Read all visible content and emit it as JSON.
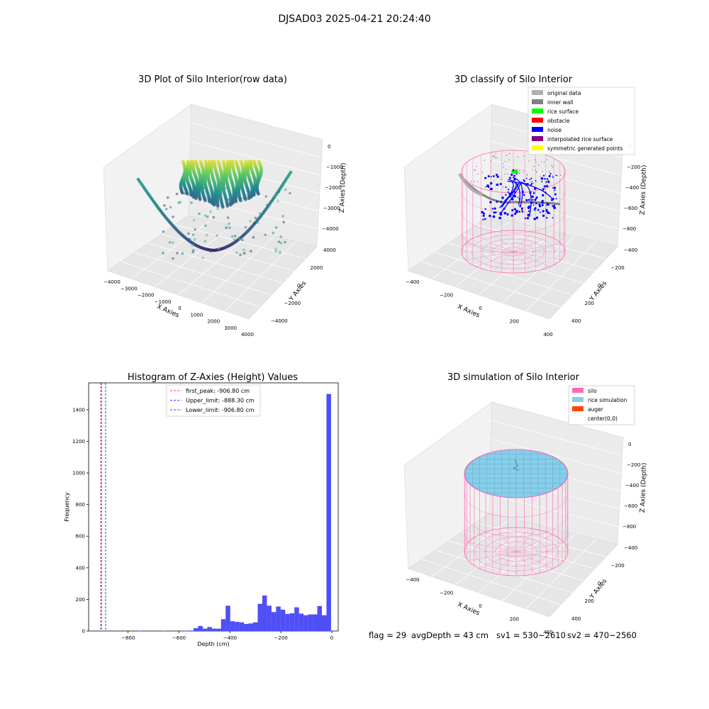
{
  "suptitle": "DJSAD03 2025-04-21 20:24:40",
  "colors": {
    "viridis": [
      "#440154",
      "#3b528b",
      "#21918c",
      "#5ec962",
      "#fde725"
    ],
    "inner_wall": "#808080",
    "original": "#b0b0b0",
    "rice_surface": "#00ff00",
    "obstacle": "#ff0000",
    "noise": "#0000ff",
    "interp": "#800080",
    "symmetric": "#ffff00",
    "silo": "#ff69b4",
    "rice_sim": "#87ceeb",
    "auger": "#ff4500",
    "hist_bar": "#4f4ff7",
    "first_peak_line": "#ff0000",
    "limit_line": "#0000ff"
  },
  "chart_data": [
    {
      "type": "scatter",
      "title": "3D Plot of Silo Interior(row data)",
      "projection": "3d",
      "xlabel": "X Axies",
      "ylabel": "Y Axies",
      "zlabel": "Z Axies (Depth)",
      "x_ticks": [
        "−4000",
        "−3000",
        "−2000",
        "−1000",
        "0",
        "1000",
        "2000",
        "3000",
        "4000"
      ],
      "y_ticks": [
        "−4000",
        "−2000",
        "0",
        "2000",
        "4000"
      ],
      "z_ticks": [
        "0",
        "−1000",
        "−2000",
        "−3000",
        "−4000"
      ],
      "xlim": [
        -4000,
        4000
      ],
      "ylim": [
        -4000,
        4000
      ],
      "zlim": [
        -4500,
        0
      ],
      "colormap": "viridis"
    },
    {
      "type": "scatter",
      "title": "3D classify of Silo Interior",
      "projection": "3d",
      "xlabel": "X Axies",
      "ylabel": "Y Axies",
      "zlabel": "Z Axies (Depth)",
      "x_ticks": [
        "−400",
        "−200",
        "0",
        "200",
        "400"
      ],
      "y_ticks": [
        "400",
        "200",
        "0",
        "−200",
        "−400"
      ],
      "z_ticks": [
        "0",
        "−200",
        "−400",
        "−600",
        "−800"
      ],
      "legend_position": "top-right",
      "legend": [
        {
          "label": "original data",
          "color": "#b0b0b0"
        },
        {
          "label": "inner wall",
          "color": "#808080"
        },
        {
          "label": "rice surface",
          "color": "#00ff00"
        },
        {
          "label": "obstacle",
          "color": "#ff0000"
        },
        {
          "label": "noise",
          "color": "#0000ff"
        },
        {
          "label": "interpolated rice surface",
          "color": "#800080"
        },
        {
          "label": "symmetric generated points",
          "color": "#ffff00"
        }
      ]
    },
    {
      "type": "bar",
      "title": "Histogram of Z-Axies (Height) Values",
      "xlabel": "Depth (cm)",
      "ylabel": "Frequency",
      "xlim": [
        -955,
        25
      ],
      "ylim": [
        0,
        1570
      ],
      "x_ticks": [
        -800,
        -600,
        -400,
        -200,
        0
      ],
      "x_tick_labels": [
        "−800",
        "−600",
        "−400",
        "−200",
        "0"
      ],
      "y_ticks": [
        0,
        200,
        400,
        600,
        800,
        1000,
        1200,
        1400
      ],
      "y_tick_labels": [
        "0",
        "200",
        "400",
        "600",
        "800",
        "1000",
        "1200",
        "1400"
      ],
      "bin_width": 18.13,
      "bins": [
        {
          "x": -750,
          "value": 2
        },
        {
          "x": -660,
          "value": 2
        },
        {
          "x": -570,
          "value": 2
        },
        {
          "x": -552,
          "value": 3
        },
        {
          "x": -534,
          "value": 18
        },
        {
          "x": -516,
          "value": 32
        },
        {
          "x": -498,
          "value": 15
        },
        {
          "x": -480,
          "value": 25
        },
        {
          "x": -462,
          "value": 15
        },
        {
          "x": -444,
          "value": 15
        },
        {
          "x": -426,
          "value": 75
        },
        {
          "x": -408,
          "value": 160
        },
        {
          "x": -390,
          "value": 62
        },
        {
          "x": -372,
          "value": 58
        },
        {
          "x": -354,
          "value": 55
        },
        {
          "x": -336,
          "value": 45
        },
        {
          "x": -318,
          "value": 48
        },
        {
          "x": -300,
          "value": 55
        },
        {
          "x": -282,
          "value": 172
        },
        {
          "x": -264,
          "value": 225
        },
        {
          "x": -246,
          "value": 160
        },
        {
          "x": -228,
          "value": 120
        },
        {
          "x": -210,
          "value": 155
        },
        {
          "x": -192,
          "value": 135
        },
        {
          "x": -174,
          "value": 108
        },
        {
          "x": -156,
          "value": 112
        },
        {
          "x": -138,
          "value": 150
        },
        {
          "x": -120,
          "value": 110
        },
        {
          "x": -102,
          "value": 100
        },
        {
          "x": -84,
          "value": 105
        },
        {
          "x": -66,
          "value": 105
        },
        {
          "x": -48,
          "value": 158
        },
        {
          "x": -30,
          "value": 100
        },
        {
          "x": -12,
          "value": 1500
        }
      ],
      "vlines": [
        {
          "x": -906.8,
          "color": "#ff0000",
          "label": "first_peak: -906.80 cm"
        },
        {
          "x": -888.3,
          "color": "#0000ff",
          "label": "Upper_limit: -888.30 cm"
        },
        {
          "x": -906.8,
          "color": "#0000ff",
          "label": "Lower_limit: -906.80 cm"
        }
      ]
    },
    {
      "type": "area",
      "title": "3D simulation of Silo Interior",
      "projection": "3d",
      "xlabel": "X Axies",
      "ylabel": "Y Axies",
      "zlabel": "Z Axies (Depth)",
      "x_ticks": [
        "−400",
        "−200",
        "0",
        "200",
        "400"
      ],
      "y_ticks": [
        "400",
        "200",
        "0",
        "−200",
        "−400"
      ],
      "z_ticks": [
        "0",
        "−200",
        "−400",
        "−600",
        "−800"
      ],
      "legend_position": "top-right",
      "legend": [
        {
          "label": "silo",
          "color": "#ff69b4"
        },
        {
          "label": "rice simulation",
          "color": "#87ceeb"
        },
        {
          "label": "auger",
          "color": "#ff4500"
        },
        {
          "label": "center(0,0)",
          "color": "#ffffff"
        }
      ]
    }
  ],
  "footer": {
    "flag": "flag = 29",
    "avg_depth": "avgDepth = 43 cm",
    "sv1": "sv1 = 530~2610",
    "sv2": "sv2 = 470~2560"
  }
}
